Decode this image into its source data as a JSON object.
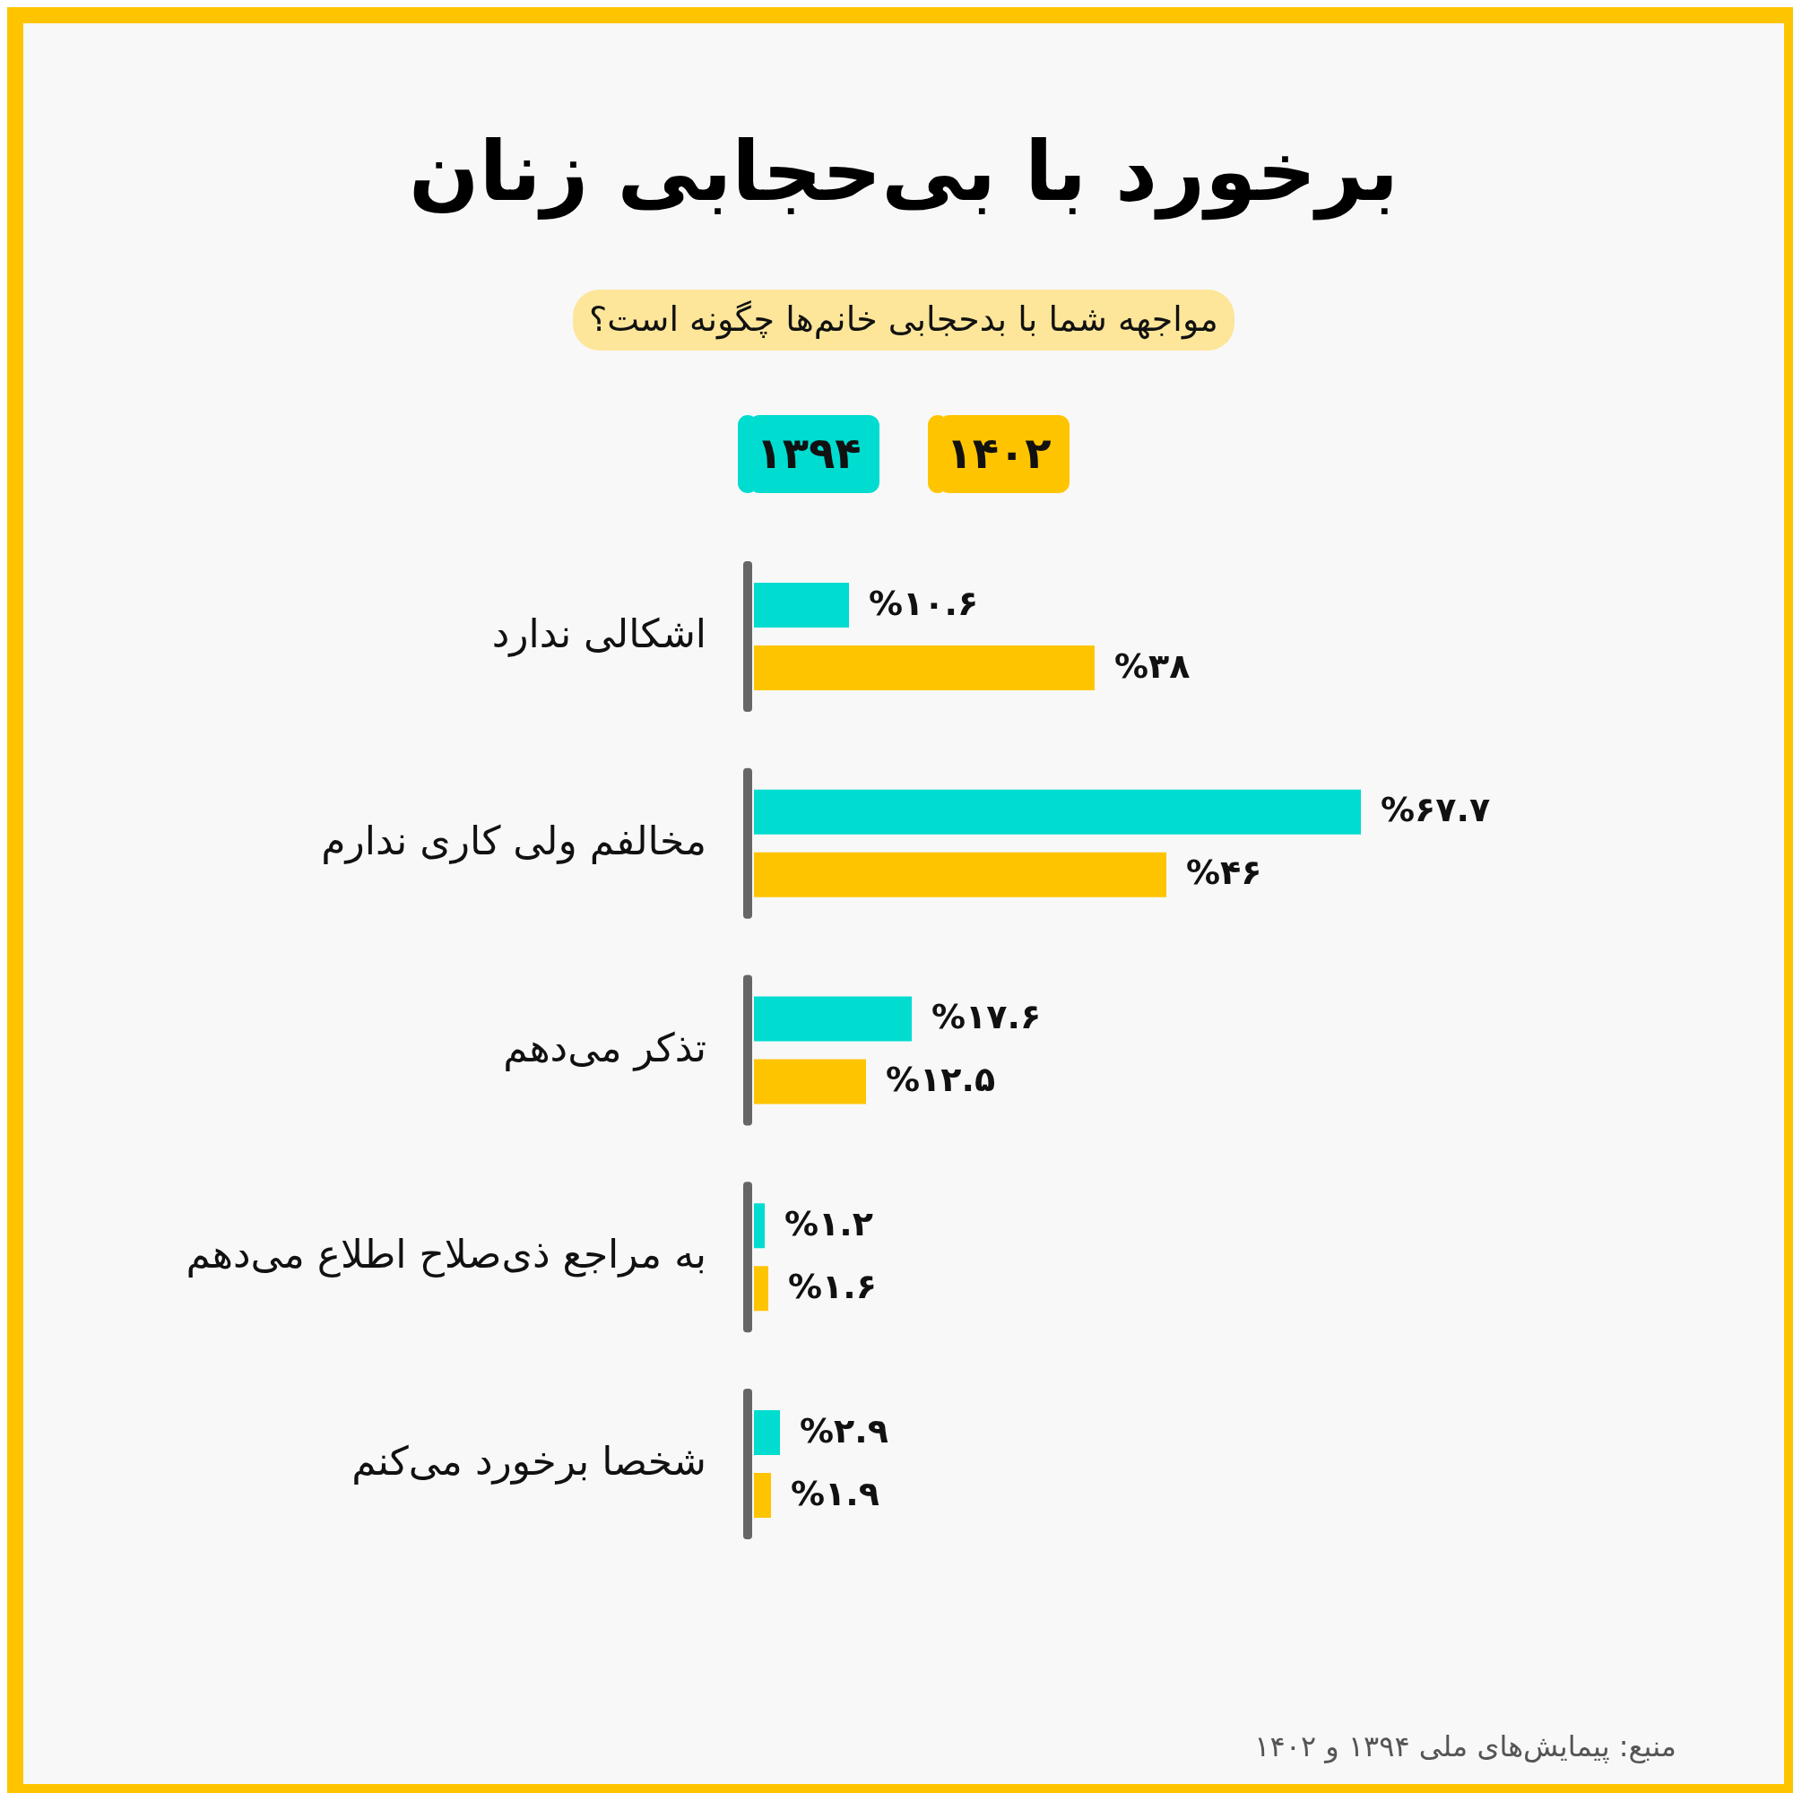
{
  "chart_data": {
    "type": "bar",
    "orientation": "horizontal",
    "title": "برخورد با بی‌حجابی زنان",
    "subtitle": "مواجهه شما با بدحجابی خانم‌ها چگونه است؟",
    "categories": [
      "اشکالی ندارد",
      "مخالفم ولی کاری ندارم",
      "تذکر می‌دهم",
      "به مراجع ذی‌صلاح اطلاع می‌دهم",
      "شخصا برخورد می‌کنم"
    ],
    "series": [
      {
        "name": "۱۳۹۴",
        "color": "#00dcd0",
        "values": [
          10.6,
          67.7,
          17.6,
          1.2,
          2.9
        ],
        "value_labels": [
          "%۱۰.۶",
          "%۶۷.۷",
          "%۱۷.۶",
          "%۱.۲",
          "%۲.۹"
        ]
      },
      {
        "name": "۱۴۰۲",
        "color": "#ffc400",
        "values": [
          38,
          46,
          12.5,
          1.6,
          1.9
        ],
        "value_labels": [
          "%۳۸",
          "%۴۶",
          "%۱۲.۵",
          "%۱.۶",
          "%۱.۹"
        ]
      }
    ],
    "legend": "top",
    "annotations": [
      "منبع: پیمایش‌های ملی ۱۳۹۴ و ۱۴۰۲"
    ]
  }
}
